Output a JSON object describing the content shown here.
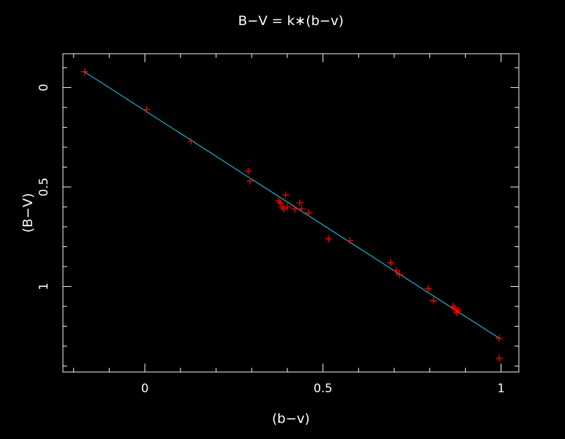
{
  "chart_data": {
    "type": "scatter",
    "title": "B−V = k∗(b−v)",
    "xlabel": "(b−v)",
    "ylabel": "(B−V)",
    "xlim": [
      -0.23,
      1.05
    ],
    "ylim": [
      1.43,
      -0.17
    ],
    "y_inverted": true,
    "x_ticks": [
      0,
      0.5,
      1
    ],
    "x_tick_labels": [
      "0",
      "0.5",
      "1"
    ],
    "y_ticks": [
      0,
      0.5,
      1
    ],
    "y_tick_labels": [
      "0",
      "0.5",
      "1"
    ],
    "x_minor_step": 0.1,
    "y_minor_step": 0.1,
    "grid": false,
    "series": [
      {
        "kind": "points",
        "marker": "+",
        "color": "#ff0000",
        "points": [
          [
            -0.17,
            -0.08
          ],
          [
            0.005,
            0.11
          ],
          [
            0.13,
            0.27
          ],
          [
            0.29,
            0.42
          ],
          [
            0.295,
            0.47
          ],
          [
            0.375,
            0.57
          ],
          [
            0.38,
            0.58
          ],
          [
            0.385,
            0.6
          ],
          [
            0.39,
            0.61
          ],
          [
            0.395,
            0.54
          ],
          [
            0.4,
            0.6
          ],
          [
            0.42,
            0.61
          ],
          [
            0.435,
            0.58
          ],
          [
            0.44,
            0.61
          ],
          [
            0.46,
            0.63
          ],
          [
            0.515,
            0.76
          ],
          [
            0.575,
            0.77
          ],
          [
            0.69,
            0.88
          ],
          [
            0.705,
            0.92
          ],
          [
            0.715,
            0.94
          ],
          [
            0.795,
            1.01
          ],
          [
            0.81,
            1.07
          ],
          [
            0.865,
            1.1
          ],
          [
            0.87,
            1.11
          ],
          [
            0.875,
            1.13
          ],
          [
            0.88,
            1.12
          ],
          [
            0.995,
            1.26
          ],
          [
            0.995,
            1.36
          ]
        ]
      },
      {
        "kind": "line",
        "color": "#00e0ff",
        "x": [
          -0.17,
          0.995
        ],
        "y": [
          -0.08,
          1.26
        ]
      }
    ]
  }
}
